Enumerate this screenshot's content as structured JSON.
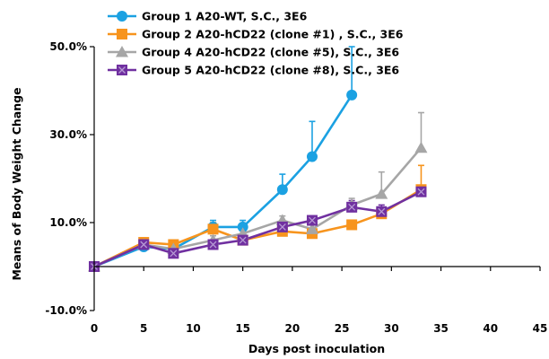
{
  "chart_data": {
    "type": "line",
    "xlabel": "Days post inoculation",
    "ylabel": "Means of Body Weight Change",
    "xlim": [
      0,
      45
    ],
    "ylim": [
      -10,
      50
    ],
    "x_ticks": [
      0,
      5,
      10,
      15,
      20,
      25,
      30,
      35,
      40,
      45
    ],
    "x_tick_labels": [
      "0",
      "5",
      "10",
      "15",
      "20",
      "25",
      "30",
      "35",
      "40",
      "45"
    ],
    "y_ticks": [
      -10,
      10,
      30,
      50
    ],
    "y_tick_labels": [
      "-10.0%",
      "10.0%",
      "30.0%",
      "50.0%"
    ],
    "grid": false,
    "legend_position": "top-left",
    "series": [
      {
        "name": "Group 1 A20-WT, S.C., 3E6",
        "color": "#1ba1e2",
        "marker": "circle",
        "x": [
          0,
          5,
          8,
          12,
          15,
          19,
          22,
          26
        ],
        "y": [
          0,
          4.5,
          4,
          9,
          9,
          17.5,
          25,
          39
        ],
        "err": [
          0,
          0,
          0,
          1.5,
          1.5,
          3.5,
          8,
          11
        ]
      },
      {
        "name": "Group 2 A20-hCD22 (clone #1) , S.C., 3E6",
        "color": "#f7941d",
        "marker": "square",
        "x": [
          0,
          5,
          8,
          12,
          15,
          19,
          22,
          26,
          29,
          33
        ],
        "y": [
          0,
          5.5,
          5,
          8.5,
          6,
          8,
          7.5,
          9.5,
          12,
          17.5
        ],
        "err": [
          0,
          1,
          1,
          1.5,
          1,
          1,
          1,
          1,
          1.5,
          5.5
        ]
      },
      {
        "name": "Group 4 A20-hCD22 (clone #5), S.C., 3E6",
        "color": "#a6a6a6",
        "marker": "triangle",
        "x": [
          0,
          5,
          8,
          12,
          15,
          19,
          22,
          26,
          29,
          33
        ],
        "y": [
          0,
          5,
          4,
          6,
          7.5,
          10.5,
          8.5,
          14,
          16.5,
          27
        ],
        "err": [
          0,
          1,
          1,
          1,
          1,
          1,
          1,
          1.5,
          5,
          8
        ]
      },
      {
        "name": "Group 5 A20-hCD22 (clone #8), S.C., 3E6",
        "color": "#7030a0",
        "marker": "x-square",
        "x": [
          0,
          5,
          8,
          12,
          15,
          19,
          22,
          26,
          29,
          33
        ],
        "y": [
          0,
          5,
          3,
          5,
          6,
          9,
          10.5,
          13.5,
          12.5,
          17
        ],
        "err": [
          0,
          0.5,
          0.5,
          1,
          0.5,
          1,
          1,
          1.5,
          1.5,
          1.5
        ]
      }
    ]
  }
}
